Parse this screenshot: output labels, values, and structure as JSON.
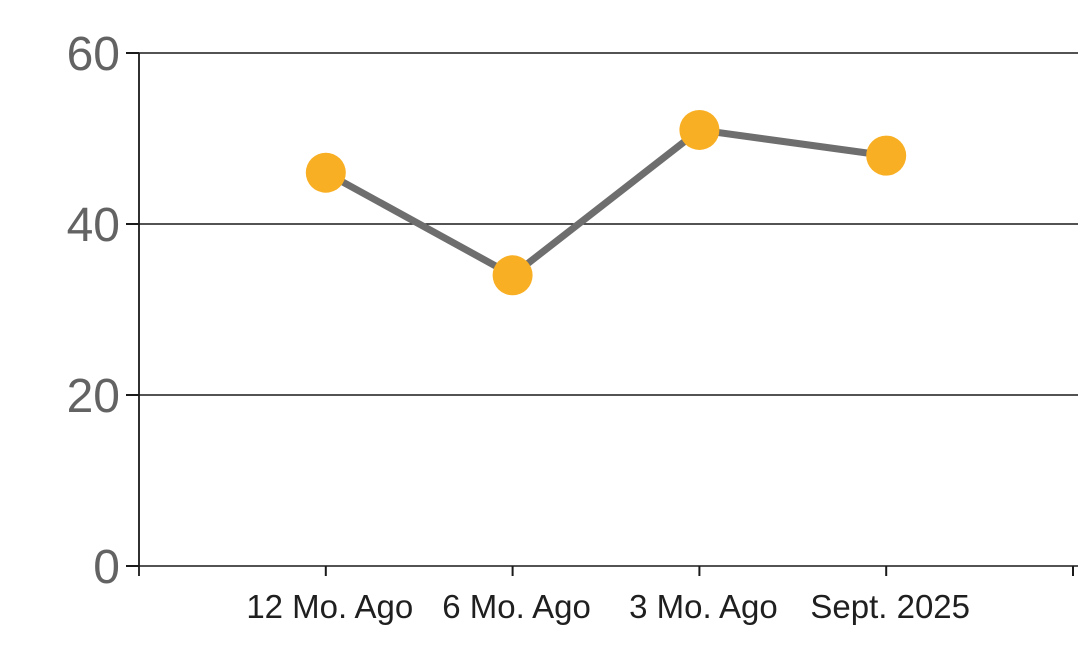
{
  "chart_data": {
    "type": "line",
    "categories": [
      "12 Mo. Ago",
      "6 Mo. Ago",
      "3 Mo. Ago",
      "Sept. 2025"
    ],
    "series": [
      {
        "name": "series-1",
        "values": [
          46,
          34,
          51,
          48
        ]
      }
    ],
    "ylim": [
      0,
      60
    ],
    "yticks": [
      0,
      20,
      40,
      60
    ],
    "grid": "horizontal",
    "legend": "none",
    "colors": {
      "marker_fill": "#F9AF23",
      "line_stroke": "#6E6E6E",
      "gridline": "#1A1A1A",
      "axis": "#1A1A1A",
      "ytick_label": "#636363",
      "xtick_label": "#1F1F1F",
      "background": "#FFFFFF"
    }
  }
}
